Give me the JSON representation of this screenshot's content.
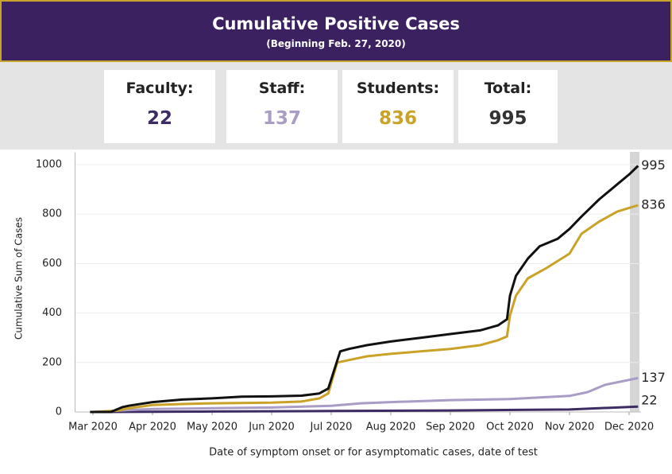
{
  "header": {
    "title": "Cumulative Positive Cases",
    "subtitle": "(Beginning Feb. 27, 2020)"
  },
  "cards": [
    {
      "label": "Faculty:",
      "value": 22,
      "color": "#3d2b63"
    },
    {
      "label": "Staff:",
      "value": 137,
      "color": "#a99cc5"
    },
    {
      "label": "Students:",
      "value": 836,
      "color": "#c9a227"
    },
    {
      "label": "Total:",
      "value": 995,
      "color": "#333333"
    }
  ],
  "chart_data": {
    "type": "line",
    "y_label": "Cumulative Sum of Cases",
    "x_label": "Date of symptom onset or for asymptomatic cases, date of test",
    "xlim": [
      -0.3,
      9.2
    ],
    "xticks": [
      {
        "value": 0,
        "label": "Mar 2020"
      },
      {
        "value": 1,
        "label": "Apr 2020"
      },
      {
        "value": 2,
        "label": "May 2020"
      },
      {
        "value": 3,
        "label": "Jun 2020"
      },
      {
        "value": 4,
        "label": "Jul 2020"
      },
      {
        "value": 5,
        "label": "Aug 2020"
      },
      {
        "value": 6,
        "label": "Sep 2020"
      },
      {
        "value": 7,
        "label": "Oct 2020"
      },
      {
        "value": 8,
        "label": "Nov 2020"
      },
      {
        "value": 9,
        "label": "Dec 2020"
      }
    ],
    "ylim": [
      0,
      1050
    ],
    "yticks": [
      0,
      200,
      400,
      600,
      800,
      1000
    ],
    "grid": true,
    "series": [
      {
        "name": "Faculty",
        "color": "#3d2b63",
        "x": [
          0,
          2,
          4,
          6,
          8,
          9.15
        ],
        "values": [
          0,
          2,
          4,
          6,
          10,
          22
        ]
      },
      {
        "name": "Staff",
        "color": "#a99cc5",
        "x": [
          0,
          0.4,
          1,
          2,
          3,
          4,
          4.5,
          5,
          6,
          7,
          8,
          8.3,
          8.6,
          9.15
        ],
        "values": [
          0,
          5,
          12,
          15,
          18,
          25,
          35,
          40,
          48,
          52,
          65,
          80,
          110,
          137
        ]
      },
      {
        "name": "Students",
        "color": "#c9a227",
        "x": [
          0,
          0.4,
          0.6,
          1,
          1.5,
          2,
          3,
          3.5,
          3.8,
          3.95,
          4.1,
          4.3,
          4.6,
          5,
          5.5,
          6,
          6.5,
          6.8,
          6.95,
          7,
          7.1,
          7.3,
          7.6,
          8,
          8.2,
          8.5,
          8.8,
          9.15
        ],
        "values": [
          0,
          5,
          15,
          28,
          32,
          35,
          38,
          42,
          55,
          75,
          200,
          210,
          225,
          235,
          245,
          255,
          270,
          290,
          305,
          390,
          470,
          540,
          580,
          640,
          720,
          770,
          810,
          836
        ]
      },
      {
        "name": "Total",
        "color": "#111111",
        "x": [
          -0.05,
          0.3,
          0.5,
          0.6,
          1,
          1.5,
          2,
          2.5,
          3,
          3.5,
          3.8,
          3.95,
          4.05,
          4.15,
          4.3,
          4.6,
          5,
          5.5,
          6,
          6.5,
          6.8,
          6.95,
          7,
          7.1,
          7.3,
          7.5,
          7.8,
          8,
          8.2,
          8.5,
          8.8,
          9,
          9.15
        ],
        "values": [
          0,
          0,
          20,
          25,
          40,
          50,
          55,
          62,
          63,
          66,
          75,
          95,
          170,
          245,
          255,
          270,
          285,
          300,
          315,
          330,
          350,
          375,
          470,
          550,
          620,
          670,
          700,
          740,
          790,
          860,
          920,
          960,
          995
        ]
      }
    ]
  }
}
